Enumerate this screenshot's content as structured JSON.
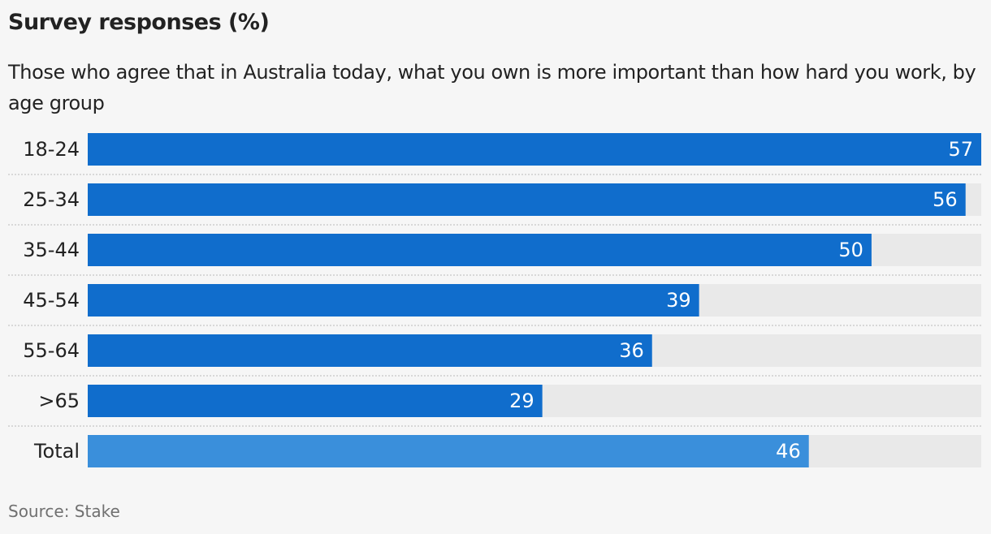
{
  "chart_data": {
    "type": "hbar",
    "title": "Survey responses (%)",
    "subtitle": "Those who agree that in Australia today, what you own is more important than how hard you work, by age group",
    "categories": [
      "18-24",
      "25-34",
      "35-44",
      "45-54",
      "55-64",
      ">65",
      "Total"
    ],
    "values": [
      57,
      56,
      50,
      39,
      36,
      29,
      46
    ],
    "colors": [
      "#106dcc",
      "#106dcc",
      "#106dcc",
      "#106dcc",
      "#106dcc",
      "#106dcc",
      "#3a8fdb"
    ],
    "track_color": "#e9e9e9",
    "xlim": [
      0,
      57
    ],
    "source": "Source: Stake"
  }
}
